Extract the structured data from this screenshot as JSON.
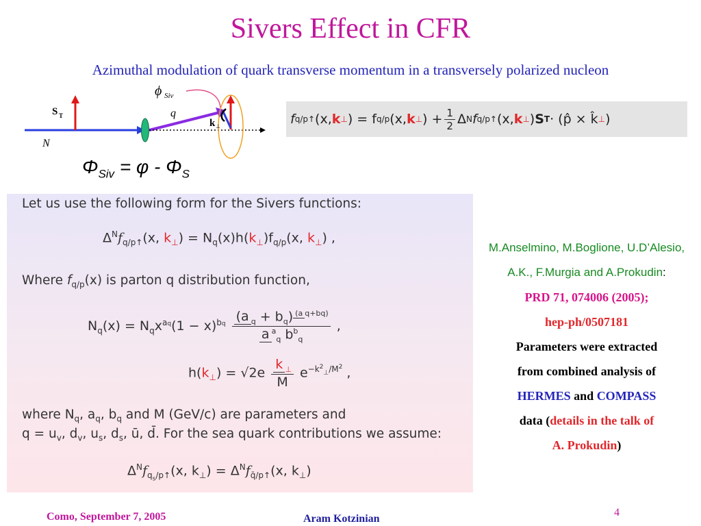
{
  "title": "Sivers Effect in CFR",
  "subtitle": "Azimuthal modulation of quark transverse momentum in a transversely polarized nucleon",
  "diagram": {
    "phi_label": "ϕ",
    "phi_sub": "Siv",
    "q_label": "q",
    "s_label": "S",
    "s_sub": "T",
    "k_label": "k",
    "k_sub": "⊥",
    "n_label": "N"
  },
  "phi_formula": {
    "lhs": "Φ",
    "lhs_sub": "Siv",
    "rhs": "= φ - Φ",
    "rhs_sub": "S"
  },
  "top_formula": {
    "part1": "f",
    "part1_sub": "q/p↑",
    "part1_args_a": "(x, ",
    "k": "k",
    "k_sub": "⊥",
    "part1_args_b": ") = f",
    "part2_sub": "q/p",
    "part2_args_a": "(x, ",
    "part2_args_b": ") + ",
    "half_num": "1",
    "half_den": "2",
    "part3": "Δ",
    "part3_sup": "N",
    "part3_f": "f",
    "part3_sub": "q/p↑",
    "part3_args_a": "(x, ",
    "part3_args_b": ") ",
    "st": "S",
    "st_sub": "T",
    "tail": " · (p̂ × k̂",
    "tail_sub": "⊥",
    "tail_end": ")"
  },
  "content": {
    "line1": "Let us use the following form for the Sivers functions:",
    "eq1": "Δ",
    "eq1_sup": "N",
    "eq1_f": "f",
    "eq1_sub": "q/p↑",
    "eq1_a": "(x, ",
    "eq1_k": "k",
    "eq1_ksub": "⊥",
    "eq1_b": ") = N",
    "eq1_nsub": "q",
    "eq1_c": "(x)h(",
    "eq1_d": ")f",
    "eq1_fsub": "q/p",
    "eq1_e": "(x, ",
    "eq1_end": ") ,",
    "line2a": "Where ",
    "line2_f": "f",
    "line2_fsub": "q/p",
    "line2b": "(x) is parton q distribution function,",
    "eq2_lhs": "N",
    "eq2_lsub": "q",
    "eq2_a": "(x) = N",
    "eq2_nsub": "q",
    "eq2_x": "x",
    "eq2_xsup": "a",
    "eq2_xsupsub": "q",
    "eq2_b": "(1 − x)",
    "eq2_bsup": "b",
    "eq2_bsupsub": "q",
    "eq2_num": "(a",
    "eq2_num_mid": " + b",
    "eq2_num_end": ")",
    "eq2_num_sup": "(a",
    "eq2_num_sup_mid": "+b",
    "eq2_num_sup_end": ")",
    "eq2_den_a": "a",
    "eq2_den_b": "b",
    "eq2_den_sup": "a",
    "eq2_den_sup2": "b",
    "eq2_q": "q",
    "eq2_end": " ,",
    "eq3_lhs": "h(",
    "eq3_k": "k",
    "eq3_ksub": "⊥",
    "eq3_a": ") = ",
    "eq3_sqrt": "√2e",
    "eq3_num": "k",
    "eq3_den": "M",
    "eq3_e": "e",
    "eq3_exp": "−k",
    "eq3_exp2": "2",
    "eq3_exp3": "⊥",
    "eq3_exp4": "/M",
    "eq3_exp5": "2",
    "eq3_end": " ,",
    "line3": "where N",
    "line3_nsub": "q",
    "line3_b": ", a",
    "line3_c": ", b",
    "line3_d": " and M (GeV/c) are parameters and",
    "line4": "q = u",
    "line4_v": "v",
    "line4_b": ", d",
    "line4_c": ", u",
    "line4_s": "s",
    "line4_d": ", d",
    "line4_e": ", ū, d̄.  For the sea quark contributions we assume:",
    "eq4": "Δ",
    "eq4_sup": "N",
    "eq4_f": "f",
    "eq4_sub": "q",
    "eq4_subsub": "s",
    "eq4_sub2": "/p↑",
    "eq4_a": "(x, k",
    "eq4_ksub": "⊥",
    "eq4_b": ") = Δ",
    "eq4_sup2": "N",
    "eq4_f2": "f",
    "eq4_sub3": "q̄/p↑",
    "eq4_c": "(x, k",
    "eq4_end": ")"
  },
  "reference": {
    "authors1": "M.Anselmino, M.Boglione, U.D’Alesio,",
    "authors2": "A.K., F.Murgia and A.Prokudin",
    "authors2_colon": ":",
    "journal": "PRD 71, 074006 (2005);",
    "arxiv": "hep-ph/0507181",
    "desc1": "Parameters were extracted",
    "desc2": "from combined analysis of",
    "hermes": "HERMES",
    "and": " and ",
    "compass": "COMPASS",
    "data": "data (",
    "details1": "details in the talk of",
    "details2": "A. Prokudin",
    "close": ")"
  },
  "footer": {
    "left": "Como, September 7,  2005",
    "center": "Aram Kotzinian",
    "page": "4"
  }
}
